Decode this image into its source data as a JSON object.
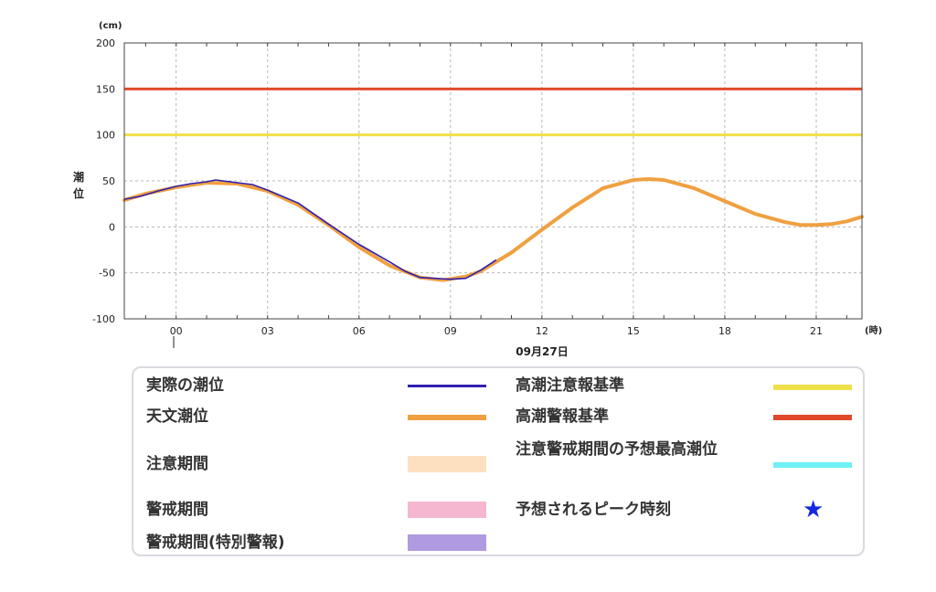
{
  "chart_data": {
    "type": "line",
    "y_unit": "(cm)",
    "x_unit": "(時)",
    "ylabel": "潮位",
    "date_label": "09月27日",
    "ylim": [
      -100,
      200
    ],
    "y_ticks": [
      200,
      150,
      100,
      50,
      0,
      -50,
      -100
    ],
    "xlim": [
      -1.7,
      22.5
    ],
    "x_ticks": [
      {
        "hour": 0,
        "label": "00"
      },
      {
        "hour": 3,
        "label": "03"
      },
      {
        "hour": 6,
        "label": "06"
      },
      {
        "hour": 9,
        "label": "09"
      },
      {
        "hour": 12,
        "label": "12"
      },
      {
        "hour": 15,
        "label": "15"
      },
      {
        "hour": 18,
        "label": "18"
      },
      {
        "hour": 21,
        "label": "21"
      }
    ],
    "grid": true,
    "thresholds": [
      {
        "name": "高潮警報基準",
        "value": 150,
        "color": "#e04a2a"
      },
      {
        "name": "高潮注意報基準",
        "value": 100,
        "color": "#f0e14a"
      }
    ],
    "series": [
      {
        "name": "天文潮位",
        "color": "#f0a040",
        "x": [
          -1.7,
          -1,
          0,
          1,
          2,
          3,
          4,
          5,
          6,
          7,
          8,
          8.75,
          9.5,
          10,
          11,
          12,
          13,
          14,
          15,
          15.5,
          16,
          17,
          18,
          19,
          20,
          20.5,
          21,
          21.5,
          22,
          22.5
        ],
        "y": [
          29,
          36,
          43,
          48,
          47,
          39,
          24,
          2,
          -22,
          -42,
          -55,
          -58,
          -54,
          -48,
          -28,
          -3,
          21,
          42,
          51,
          52,
          51,
          42,
          28,
          14,
          5,
          2,
          2,
          3,
          6,
          11
        ]
      },
      {
        "name": "実際の潮位",
        "color": "#3020b0",
        "x": [
          -1.7,
          -1.2,
          -0.6,
          0,
          0.5,
          1,
          1.3,
          2,
          2.5,
          3,
          4,
          5,
          6,
          7,
          7.5,
          8,
          8.5,
          9,
          9.5,
          10,
          10.5
        ],
        "y": [
          30,
          33,
          39,
          44,
          47,
          49,
          51,
          48,
          46,
          40,
          26,
          3,
          -19,
          -38,
          -48,
          -55,
          -56,
          -57,
          -56,
          -47,
          -36
        ]
      }
    ]
  },
  "legend": {
    "items": [
      {
        "label": "実際の潮位",
        "kind": "line",
        "color": "#3020b0"
      },
      {
        "label": "天文潮位",
        "kind": "thick",
        "color": "#f0a040"
      },
      {
        "label": "注意期間",
        "kind": "swatch",
        "color": "#fde0bf"
      },
      {
        "label": "警戒期間",
        "kind": "swatch",
        "color": "#f5b7d0"
      },
      {
        "label": "警戒期間(特別警報)",
        "kind": "swatch",
        "color": "#b09be0"
      },
      {
        "label": "高潮注意報基準",
        "kind": "thick",
        "color": "#f0e14a"
      },
      {
        "label": "高潮警報基準",
        "kind": "thick",
        "color": "#e04a2a"
      },
      {
        "label": "注意警戒期間の予想最高潮位",
        "kind": "thick",
        "color": "#6ef0f5"
      },
      {
        "label": "予想されるピーク時刻",
        "kind": "star",
        "color": "#1428e0",
        "symbol": "★"
      }
    ]
  }
}
